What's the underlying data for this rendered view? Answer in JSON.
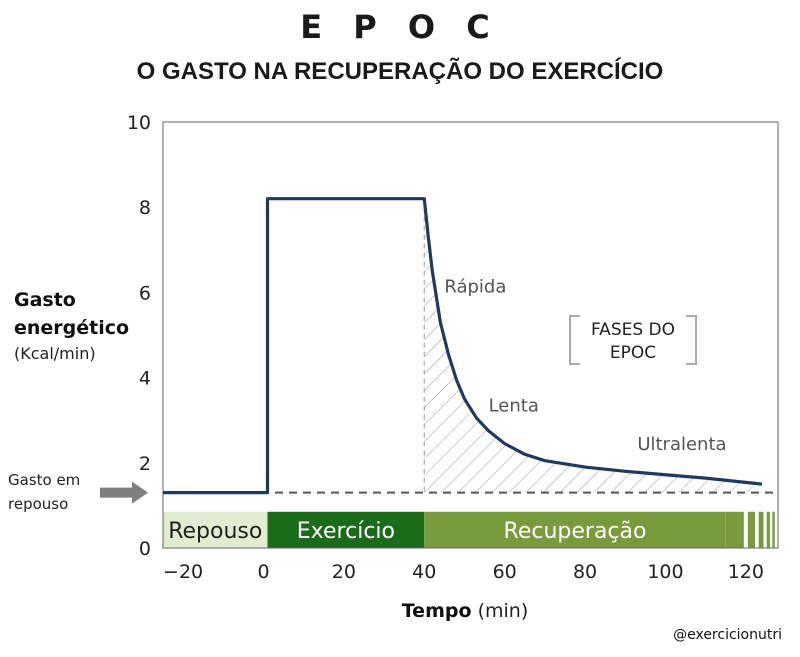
{
  "title": "E P O C",
  "subtitle": "O GASTO NA RECUPERAÇÃO DO EXERCÍCIO",
  "ylabel_line1": "Gasto",
  "ylabel_line2": "energético",
  "yunit": "(Kcal/min)",
  "rest_label_line1": "Gasto em",
  "rest_label_line2": "repouso",
  "xlabel_bold": "Tempo",
  "xlabel_unit": "(min)",
  "credit": "@exercicionutri",
  "colors": {
    "curve": "#1f3a5f",
    "repouso_band": "#e2ecd0",
    "exercicio_band": "#1a6b1a",
    "recuperacao_band": "#7a9a3e",
    "dashed": "#555555",
    "hatch": "#999999",
    "arrow": "#7f7f7f"
  },
  "chart_data": {
    "type": "line",
    "title": "E P O C",
    "subtitle": "O GASTO NA RECUPERAÇÃO DO EXERCÍCIO",
    "xlabel": "Tempo (min)",
    "ylabel": "Gasto energético (Kcal/min)",
    "xlim": [
      -25,
      128
    ],
    "ylim": [
      0,
      10
    ],
    "xticks": [
      "−20",
      "0",
      "20",
      "40",
      "60",
      "80",
      "100",
      "120"
    ],
    "xtick_values": [
      -20,
      0,
      20,
      40,
      60,
      80,
      100,
      120
    ],
    "yticks": [
      "0",
      "2",
      "4",
      "6",
      "8",
      "10"
    ],
    "ytick_values": [
      0,
      2,
      4,
      6,
      8,
      10
    ],
    "grid": false,
    "resting_level": 1.3,
    "series": [
      {
        "x": [
          -25,
          1,
          1,
          40,
          41,
          42,
          43,
          44,
          46,
          48,
          50,
          53,
          56,
          60,
          65,
          70,
          80,
          90,
          100,
          110,
          124
        ],
        "y": [
          1.3,
          1.3,
          8.2,
          8.2,
          7.3,
          6.5,
          5.9,
          5.3,
          4.55,
          3.95,
          3.5,
          3.05,
          2.75,
          2.45,
          2.2,
          2.05,
          1.9,
          1.8,
          1.72,
          1.64,
          1.5
        ]
      }
    ],
    "phase_bands": [
      {
        "label": "Repouso",
        "x_start": -25,
        "x_end": 1
      },
      {
        "label": "Exercício",
        "x_start": 1,
        "x_end": 40
      },
      {
        "label": "Recuperação",
        "x_start": 40,
        "x_end": 115
      }
    ],
    "annotations": [
      {
        "text": "Rápida",
        "x": 45,
        "y": 6.0
      },
      {
        "text": "Lenta",
        "x": 56,
        "y": 3.2
      },
      {
        "text": "Ultralenta",
        "x": 93,
        "y": 2.3
      }
    ],
    "legend_box": {
      "line1": "FASES DO",
      "line2": "EPOC"
    }
  }
}
